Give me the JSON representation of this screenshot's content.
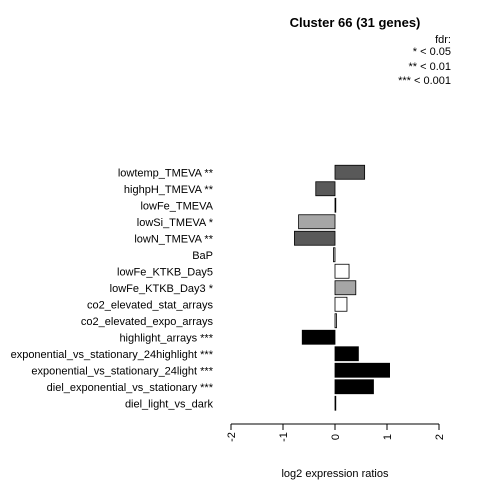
{
  "chart_data": {
    "type": "bar",
    "orientation": "horizontal",
    "title": "Cluster 66 (31 genes)",
    "xlabel": "log2 expression ratios",
    "ylabel": "",
    "xlim": [
      -2,
      2
    ],
    "xticks": [
      "-2",
      "-1",
      "0",
      "1",
      "2"
    ],
    "legend": {
      "title": "fdr:",
      "placement": "top-right",
      "entries": [
        "* < 0.05",
        "** < 0.01",
        "*** < 0.001"
      ]
    },
    "categories": [
      "lowtemp_TMEVA **",
      "highpH_TMEVA **",
      "lowFe_TMEVA",
      "lowSi_TMEVA *",
      "lowN_TMEVA **",
      "BaP",
      "lowFe_KTKB_Day5",
      "lowFe_KTKB_Day3 *",
      "co2_elevated_stat_arrays",
      "co2_elevated_expo_arrays",
      "highlight_arrays ***",
      "exponential_vs_stationary_24highlight ***",
      "exponential_vs_stationary_24light ***",
      "diel_exponential_vs_stationary ***",
      "diel_light_vs_dark"
    ],
    "values": [
      0.57,
      -0.37,
      0.01,
      -0.7,
      -0.78,
      -0.03,
      0.27,
      0.4,
      0.23,
      0.03,
      -0.63,
      0.45,
      1.05,
      0.74,
      0.01
    ],
    "bar_colors": [
      "#595959",
      "#595959",
      "#d9d9d9",
      "#a6a6a6",
      "#595959",
      "#d9d9d9",
      "#ffffff",
      "#a6a6a6",
      "#ffffff",
      "#d9d9d9",
      "#000000",
      "#000000",
      "#000000",
      "#000000",
      "#ffffff"
    ]
  }
}
